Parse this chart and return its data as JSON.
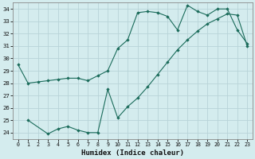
{
  "xlabel": "Humidex (Indice chaleur)",
  "bg_color": "#d4ecee",
  "grid_color": "#b8d4d8",
  "line_color": "#1a6b5a",
  "xlim": [
    -0.5,
    23.5
  ],
  "ylim": [
    23.5,
    34.5
  ],
  "yticks": [
    24,
    25,
    26,
    27,
    28,
    29,
    30,
    31,
    32,
    33,
    34
  ],
  "xticks": [
    0,
    1,
    2,
    3,
    4,
    5,
    6,
    7,
    8,
    9,
    10,
    11,
    12,
    13,
    14,
    15,
    16,
    17,
    18,
    19,
    20,
    21,
    22,
    23
  ],
  "line1_x": [
    0,
    1,
    2,
    3,
    4,
    5,
    6,
    7,
    8,
    9,
    10,
    11,
    12,
    13,
    14,
    15,
    16,
    17,
    18,
    19,
    20,
    21,
    22,
    23
  ],
  "line1_y": [
    29.5,
    28.0,
    28.1,
    28.2,
    28.3,
    28.4,
    28.4,
    28.2,
    28.6,
    29.0,
    30.8,
    31.5,
    33.7,
    33.8,
    33.7,
    33.4,
    32.3,
    34.3,
    33.8,
    33.5,
    34.0,
    34.0,
    32.3,
    31.2
  ],
  "line2_x": [
    1,
    3,
    4,
    5,
    6,
    7,
    8,
    9,
    10,
    11,
    12,
    13,
    14,
    15,
    16,
    17,
    18,
    19,
    20,
    21,
    22,
    23
  ],
  "line2_y": [
    25.0,
    23.9,
    24.3,
    24.5,
    24.2,
    24.0,
    24.0,
    27.5,
    25.2,
    26.1,
    26.8,
    27.7,
    28.7,
    29.7,
    30.7,
    31.5,
    32.2,
    32.8,
    33.2,
    33.6,
    33.5,
    31.0
  ]
}
